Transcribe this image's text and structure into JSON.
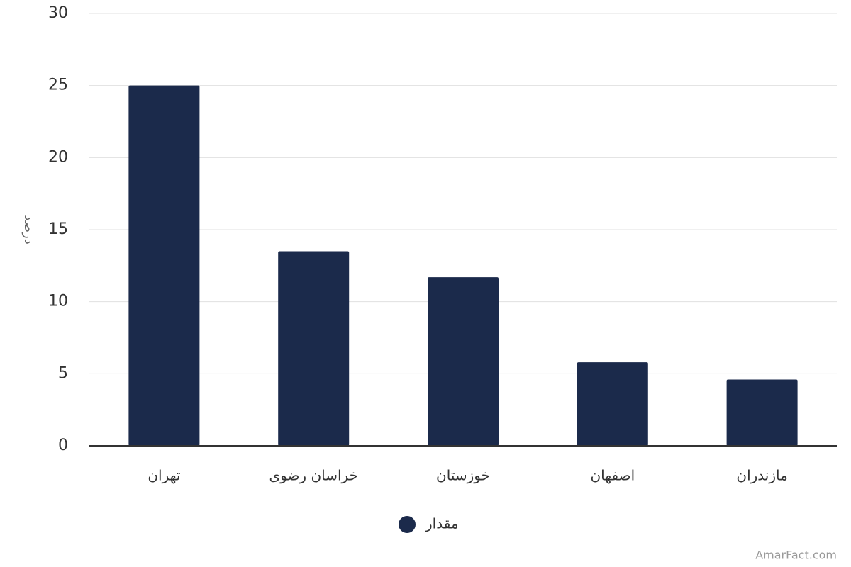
{
  "chart_data": {
    "type": "bar",
    "y_label": "درصد",
    "categories": [
      "تهران",
      "خراسان رضوی",
      "خوزستان",
      "اصفهان",
      "مازندران"
    ],
    "series": [
      {
        "name": "مقدار",
        "color": "#1b2a4b",
        "values": [
          25,
          13.5,
          11.7,
          5.8,
          4.6
        ]
      }
    ],
    "ylim": [
      0,
      30
    ],
    "yticks": [
      0,
      5,
      10,
      15,
      20,
      25,
      30
    ],
    "grid": true,
    "legend": "bottom",
    "credit": "AmarFact.com"
  }
}
